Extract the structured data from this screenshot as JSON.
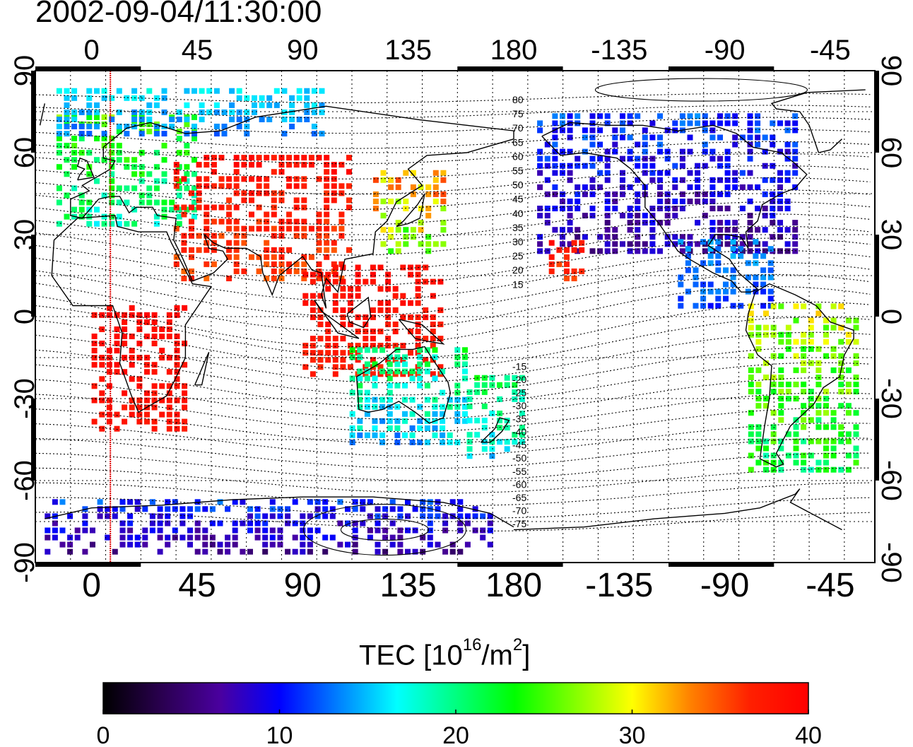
{
  "title": "2002-09-04/11:30:00",
  "map": {
    "top_ticks": [
      "0",
      "45",
      "90",
      "135",
      "180",
      "-135",
      "-90",
      "-45"
    ],
    "bottom_ticks": [
      "0",
      "45",
      "90",
      "135",
      "180",
      "-135",
      "-90",
      "-45"
    ],
    "left_ticks": [
      "90",
      "60",
      "30",
      "0",
      "-30",
      "-60",
      "-90"
    ],
    "right_ticks": [
      "90",
      "60",
      "30",
      "0",
      "-30",
      "-60",
      "-90"
    ],
    "contour_labels": [
      "80",
      "75",
      "70",
      "65",
      "60",
      "55",
      "50",
      "45",
      "40",
      "35",
      "30",
      "25",
      "20",
      "15",
      "-15",
      "-20",
      "-25",
      "-30",
      "-35",
      "-40",
      "-45",
      "-50",
      "-55",
      "-60",
      "-65",
      "-70",
      "-75"
    ],
    "terminator_longitude": 8,
    "gridlines": "dotted"
  },
  "colorbar": {
    "title_prefix": "TEC  [10",
    "title_exp1": "16",
    "title_mid": "/m",
    "title_exp2": "2",
    "title_suffix": "]",
    "ticks": [
      "0",
      "10",
      "20",
      "30",
      "40"
    ],
    "range": [
      0,
      40
    ],
    "colors": [
      "#000000",
      "#2a0050",
      "#4a00a0",
      "#0000ff",
      "#0080ff",
      "#00ffff",
      "#00ff80",
      "#00ff00",
      "#80ff00",
      "#ffff00",
      "#ff8000",
      "#ff2000",
      "#ff0000"
    ]
  },
  "regions": [
    {
      "name": "europe",
      "lon": [
        -15,
        45
      ],
      "lat": [
        35,
        75
      ],
      "tec": [
        16,
        28
      ]
    },
    {
      "name": "asia-mid",
      "lon": [
        35,
        110
      ],
      "lat": [
        15,
        60
      ],
      "tec": [
        34,
        40
      ]
    },
    {
      "name": "japan",
      "lon": [
        120,
        150
      ],
      "lat": [
        25,
        55
      ],
      "tec": [
        22,
        38
      ]
    },
    {
      "name": "se-asia",
      "lon": [
        90,
        150
      ],
      "lat": [
        -20,
        20
      ],
      "tec": [
        36,
        40
      ]
    },
    {
      "name": "africa",
      "lon": [
        0,
        40
      ],
      "lat": [
        -40,
        5
      ],
      "tec": [
        37,
        40
      ]
    },
    {
      "name": "north-america",
      "lon": [
        -170,
        -60
      ],
      "lat": [
        25,
        75
      ],
      "tec": [
        4,
        14
      ]
    },
    {
      "name": "central-america",
      "lon": [
        -110,
        -70
      ],
      "lat": [
        5,
        30
      ],
      "tec": [
        10,
        16
      ]
    },
    {
      "name": "south-america",
      "lon": [
        -80,
        -35
      ],
      "lat": [
        -55,
        5
      ],
      "tec": [
        18,
        32
      ]
    },
    {
      "name": "australia",
      "lon": [
        110,
        160
      ],
      "lat": [
        -45,
        -10
      ],
      "tec": [
        12,
        24
      ]
    },
    {
      "name": "nz",
      "lon": [
        160,
        185
      ],
      "lat": [
        -50,
        -20
      ],
      "tec": [
        14,
        24
      ]
    },
    {
      "name": "arctic",
      "lon": [
        -15,
        100
      ],
      "lat": [
        68,
        86
      ],
      "tec": [
        12,
        18
      ]
    },
    {
      "name": "antarctic",
      "lon": [
        -20,
        170
      ],
      "lat": [
        -85,
        -65
      ],
      "tec": [
        4,
        14
      ]
    },
    {
      "name": "hawaii",
      "lon": [
        -165,
        -150
      ],
      "lat": [
        15,
        30
      ],
      "tec": [
        34,
        40
      ]
    }
  ]
}
